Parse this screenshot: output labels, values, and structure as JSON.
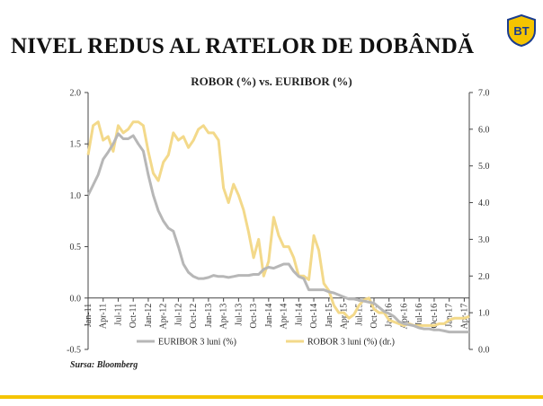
{
  "header": {
    "title": "NIVEL REDUS AL RATELOR DE DOBÂNDĂ",
    "logo_text": "BT"
  },
  "source_note": "Sursa: Bloomberg",
  "colors": {
    "euribor": "#b7b7b7",
    "robor": "#f3d98a",
    "accent": "#f5c400",
    "logo_blue": "#1a3c8f"
  },
  "chart_data": {
    "type": "line",
    "title": "ROBOR (%) vs. EURIBOR (%)",
    "x_ticks": [
      "Jan-11",
      "Apr-11",
      "Jul-11",
      "Oct-11",
      "Jan-12",
      "Apr-12",
      "Jul-12",
      "Oct-12",
      "Jan-13",
      "Apr-13",
      "Jul-13",
      "Oct-13",
      "Jan-14",
      "Apr-14",
      "Jul-14",
      "Oct-14",
      "Jan-15",
      "Apr-15",
      "Jul-15",
      "Oct-15",
      "Jan-16",
      "Apr-16",
      "Jul-16",
      "Oct-16",
      "Jan-17",
      "Apr-17"
    ],
    "y_left": {
      "ticks": [
        "2.0",
        "1.5",
        "1.0",
        "0.5",
        "0.0",
        "-0.5"
      ],
      "range": [
        -0.5,
        2.0
      ]
    },
    "y_right": {
      "ticks": [
        "7.0",
        "6.0",
        "5.0",
        "4.0",
        "3.0",
        "2.0",
        "1.0",
        "0.0"
      ],
      "range": [
        0.0,
        7.0
      ]
    },
    "legend": [
      "EURIBOR 3 luni (%)",
      "ROBOR 3 luni (%) (dr.)"
    ],
    "series": [
      {
        "name": "EURIBOR 3 luni (%)",
        "axis": "left",
        "x": [
          "2011-01",
          "2011-02",
          "2011-03",
          "2011-04",
          "2011-05",
          "2011-06",
          "2011-07",
          "2011-08",
          "2011-09",
          "2011-10",
          "2011-11",
          "2011-12",
          "2012-01",
          "2012-02",
          "2012-03",
          "2012-04",
          "2012-05",
          "2012-06",
          "2012-07",
          "2012-08",
          "2012-09",
          "2012-10",
          "2012-11",
          "2012-12",
          "2013-01",
          "2013-02",
          "2013-03",
          "2013-04",
          "2013-05",
          "2013-06",
          "2013-07",
          "2013-08",
          "2013-09",
          "2013-10",
          "2013-11",
          "2013-12",
          "2014-01",
          "2014-02",
          "2014-03",
          "2014-04",
          "2014-05",
          "2014-06",
          "2014-07",
          "2014-08",
          "2014-09",
          "2014-10",
          "2014-11",
          "2014-12",
          "2015-01",
          "2015-02",
          "2015-03",
          "2015-04",
          "2015-05",
          "2015-06",
          "2015-07",
          "2015-08",
          "2015-09",
          "2015-10",
          "2015-11",
          "2015-12",
          "2016-01",
          "2016-02",
          "2016-03",
          "2016-04",
          "2016-05",
          "2016-06",
          "2016-07",
          "2016-08",
          "2016-09",
          "2016-10",
          "2016-11",
          "2016-12",
          "2017-01",
          "2017-02",
          "2017-03",
          "2017-04",
          "2017-05"
        ],
        "values": [
          1.0,
          1.1,
          1.2,
          1.35,
          1.42,
          1.5,
          1.6,
          1.55,
          1.55,
          1.58,
          1.5,
          1.43,
          1.2,
          1.0,
          0.85,
          0.75,
          0.68,
          0.65,
          0.5,
          0.33,
          0.25,
          0.21,
          0.19,
          0.19,
          0.2,
          0.22,
          0.21,
          0.21,
          0.2,
          0.21,
          0.22,
          0.22,
          0.22,
          0.23,
          0.23,
          0.28,
          0.3,
          0.29,
          0.31,
          0.33,
          0.33,
          0.26,
          0.21,
          0.19,
          0.08,
          0.08,
          0.08,
          0.08,
          0.06,
          0.05,
          0.03,
          0.01,
          -0.01,
          -0.01,
          -0.02,
          -0.03,
          -0.04,
          -0.05,
          -0.09,
          -0.13,
          -0.15,
          -0.18,
          -0.23,
          -0.25,
          -0.26,
          -0.27,
          -0.29,
          -0.3,
          -0.3,
          -0.31,
          -0.31,
          -0.32,
          -0.33,
          -0.33,
          -0.33,
          -0.33,
          -0.33
        ]
      },
      {
        "name": "ROBOR 3 luni (%) (dr.)",
        "axis": "right",
        "x": [
          "2011-01",
          "2011-02",
          "2011-03",
          "2011-04",
          "2011-05",
          "2011-06",
          "2011-07",
          "2011-08",
          "2011-09",
          "2011-10",
          "2011-11",
          "2011-12",
          "2012-01",
          "2012-02",
          "2012-03",
          "2012-04",
          "2012-05",
          "2012-06",
          "2012-07",
          "2012-08",
          "2012-09",
          "2012-10",
          "2012-11",
          "2012-12",
          "2013-01",
          "2013-02",
          "2013-03",
          "2013-04",
          "2013-05",
          "2013-06",
          "2013-07",
          "2013-08",
          "2013-09",
          "2013-10",
          "2013-11",
          "2013-12",
          "2014-01",
          "2014-02",
          "2014-03",
          "2014-04",
          "2014-05",
          "2014-06",
          "2014-07",
          "2014-08",
          "2014-09",
          "2014-10",
          "2014-11",
          "2014-12",
          "2015-01",
          "2015-02",
          "2015-03",
          "2015-04",
          "2015-05",
          "2015-06",
          "2015-07",
          "2015-08",
          "2015-09",
          "2015-10",
          "2015-11",
          "2015-12",
          "2016-01",
          "2016-02",
          "2016-03",
          "2016-04",
          "2016-05",
          "2016-06",
          "2016-07",
          "2016-08",
          "2016-09",
          "2016-10",
          "2016-11",
          "2016-12",
          "2017-01",
          "2017-02",
          "2017-03",
          "2017-04",
          "2017-05"
        ],
        "values": [
          5.3,
          6.1,
          6.2,
          5.7,
          5.8,
          5.4,
          6.1,
          5.9,
          6.0,
          6.2,
          6.2,
          6.1,
          5.4,
          4.8,
          4.6,
          5.1,
          5.3,
          5.9,
          5.7,
          5.8,
          5.5,
          5.7,
          6.0,
          6.1,
          5.9,
          5.9,
          5.7,
          4.4,
          4.0,
          4.5,
          4.2,
          3.8,
          3.2,
          2.5,
          3.0,
          2.0,
          2.4,
          3.6,
          3.1,
          2.8,
          2.8,
          2.5,
          2.0,
          2.0,
          1.9,
          3.1,
          2.7,
          1.8,
          1.6,
          1.2,
          1.0,
          1.0,
          0.85,
          0.95,
          1.2,
          1.35,
          1.4,
          1.1,
          1.0,
          1.0,
          0.8,
          0.75,
          0.7,
          0.65,
          0.7,
          0.65,
          0.65,
          0.65,
          0.65,
          0.65,
          0.7,
          0.7,
          0.8,
          0.85,
          0.85,
          0.85,
          0.9
        ]
      }
    ],
    "grid": false,
    "legend_position": "bottom"
  }
}
